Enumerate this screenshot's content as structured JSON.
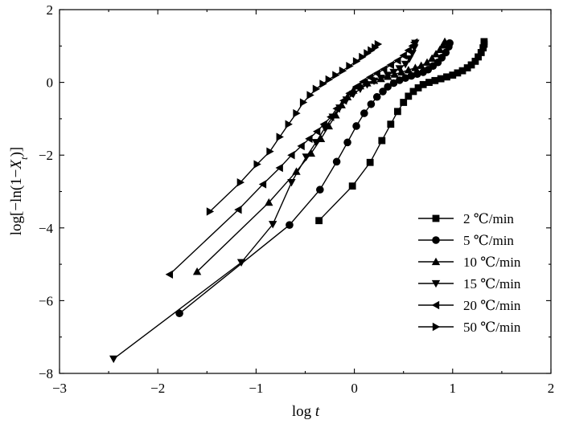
{
  "chart_data": {
    "type": "line",
    "title": "",
    "xlabel": {
      "prefix": "log ",
      "var": "t"
    },
    "ylabel": {
      "prefix": "log[−ln(1−",
      "var": "X",
      "sub": "t",
      "suffix": ")]"
    },
    "xlim": [
      -3,
      2
    ],
    "ylim": [
      -8,
      2
    ],
    "xticks": [
      -3,
      -2,
      -1,
      0,
      1,
      2
    ],
    "yticks": [
      -8,
      -6,
      -4,
      -2,
      0,
      2
    ],
    "xtick_labels": [
      "−3",
      "−2",
      "−1",
      "0",
      "1",
      "2"
    ],
    "ytick_labels": [
      "−8",
      "−6",
      "−4",
      "−2",
      "0",
      "2"
    ],
    "grid": false,
    "legend_position": "bottom-right",
    "series": [
      {
        "name": "2 ℃/min",
        "marker": "square",
        "x": [
          -0.36,
          -0.02,
          0.16,
          0.28,
          0.37,
          0.44,
          0.5,
          0.55,
          0.6,
          0.65,
          0.7,
          0.76,
          0.82,
          0.88,
          0.94,
          1.0,
          1.05,
          1.1,
          1.15,
          1.19,
          1.23,
          1.26,
          1.29,
          1.31,
          1.32,
          1.32
        ],
        "y": [
          -3.8,
          -2.85,
          -2.2,
          -1.6,
          -1.15,
          -0.8,
          -0.55,
          -0.38,
          -0.25,
          -0.15,
          -0.06,
          0.0,
          0.05,
          0.1,
          0.15,
          0.2,
          0.26,
          0.32,
          0.4,
          0.48,
          0.58,
          0.7,
          0.82,
          0.95,
          1.05,
          1.12
        ]
      },
      {
        "name": "5 ℃/min",
        "marker": "circle",
        "x": [
          -1.78,
          -0.66,
          -0.35,
          -0.18,
          -0.07,
          0.02,
          0.1,
          0.17,
          0.23,
          0.29,
          0.34,
          0.4,
          0.46,
          0.52,
          0.58,
          0.64,
          0.7,
          0.75,
          0.8,
          0.85,
          0.89,
          0.93,
          0.96,
          0.97
        ],
        "y": [
          -6.35,
          -3.92,
          -2.95,
          -2.18,
          -1.65,
          -1.2,
          -0.85,
          -0.6,
          -0.4,
          -0.25,
          -0.12,
          -0.02,
          0.06,
          0.12,
          0.18,
          0.23,
          0.28,
          0.35,
          0.45,
          0.55,
          0.68,
          0.82,
          0.98,
          1.08
        ]
      },
      {
        "name": "10 ℃/min",
        "marker": "triangle-up",
        "x": [
          -1.6,
          -0.87,
          -0.59,
          -0.44,
          -0.34,
          -0.26,
          -0.19,
          -0.13,
          -0.07,
          -0.01,
          0.06,
          0.13,
          0.2,
          0.27,
          0.34,
          0.41,
          0.48,
          0.55,
          0.62,
          0.68,
          0.74,
          0.79,
          0.83,
          0.87,
          0.9,
          0.92
        ],
        "y": [
          -5.2,
          -3.3,
          -2.45,
          -1.95,
          -1.55,
          -1.2,
          -0.9,
          -0.62,
          -0.4,
          -0.22,
          -0.1,
          -0.02,
          0.05,
          0.1,
          0.16,
          0.22,
          0.28,
          0.34,
          0.4,
          0.46,
          0.55,
          0.66,
          0.78,
          0.9,
          1.02,
          1.12
        ]
      },
      {
        "name": "15 ℃/min",
        "marker": "triangle-down",
        "x": [
          -2.45,
          -1.15,
          -0.83,
          -0.64,
          -0.49,
          -0.39,
          -0.3,
          -0.22,
          -0.15,
          -0.08,
          -0.01,
          0.06,
          0.13,
          0.2,
          0.27,
          0.34,
          0.4,
          0.46,
          0.52,
          0.56,
          0.59,
          0.61,
          0.62
        ],
        "y": [
          -7.6,
          -4.95,
          -3.9,
          -2.75,
          -2.05,
          -1.65,
          -1.25,
          -0.95,
          -0.7,
          -0.48,
          -0.32,
          -0.18,
          -0.06,
          0.04,
          0.12,
          0.2,
          0.28,
          0.38,
          0.5,
          0.65,
          0.8,
          0.95,
          1.08
        ]
      },
      {
        "name": "20 ℃/min",
        "marker": "triangle-left",
        "x": [
          -1.88,
          -1.18,
          -0.93,
          -0.76,
          -0.64,
          -0.54,
          -0.46,
          -0.38,
          -0.31,
          -0.24,
          -0.18,
          -0.11,
          -0.05,
          0.02,
          0.09,
          0.16,
          0.23,
          0.3,
          0.37,
          0.44,
          0.5,
          0.55,
          0.59,
          0.61
        ],
        "y": [
          -5.28,
          -3.5,
          -2.8,
          -2.35,
          -2.0,
          -1.75,
          -1.55,
          -1.35,
          -1.15,
          -0.95,
          -0.72,
          -0.5,
          -0.3,
          -0.12,
          0.02,
          0.14,
          0.25,
          0.36,
          0.48,
          0.6,
          0.74,
          0.88,
          1.0,
          1.1
        ]
      },
      {
        "name": "50 ℃/min",
        "marker": "triangle-right",
        "x": [
          -1.47,
          -1.16,
          -0.99,
          -0.86,
          -0.76,
          -0.67,
          -0.59,
          -0.52,
          -0.45,
          -0.39,
          -0.32,
          -0.26,
          -0.19,
          -0.12,
          -0.05,
          0.02,
          0.08,
          0.13,
          0.17,
          0.21,
          0.24
        ],
        "y": [
          -3.55,
          -2.75,
          -2.25,
          -1.9,
          -1.5,
          -1.15,
          -0.85,
          -0.55,
          -0.35,
          -0.18,
          -0.04,
          0.08,
          0.2,
          0.32,
          0.45,
          0.58,
          0.7,
          0.8,
          0.88,
          0.96,
          1.05
        ]
      }
    ]
  }
}
